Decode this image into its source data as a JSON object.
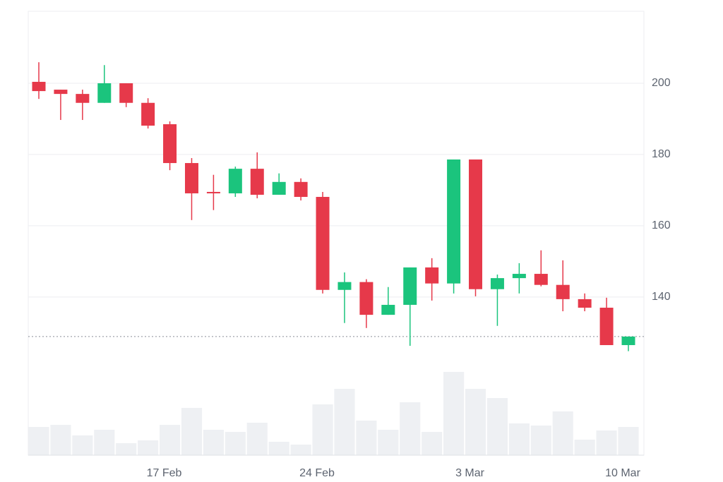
{
  "chart_data": {
    "type": "candlestick",
    "categories": [
      null,
      null,
      null,
      null,
      null,
      null,
      "17 Feb",
      null,
      null,
      null,
      null,
      null,
      null,
      "24 Feb",
      null,
      null,
      null,
      null,
      null,
      null,
      "3 Mar",
      null,
      null,
      null,
      null,
      null,
      null,
      "10 Mar"
    ],
    "open": [
      200.4,
      198.2,
      197.0,
      194.5,
      200.0,
      194.5,
      188.5,
      177.6,
      169.5,
      169.1,
      176.0,
      168.7,
      172.3,
      168.1,
      142.0,
      144.2,
      135.0,
      137.8,
      148.3,
      143.8,
      178.6,
      142.2,
      145.3,
      146.5,
      143.4,
      139.4,
      137.0,
      126.5
    ],
    "high": [
      205.9,
      198.2,
      198.2,
      205.1,
      200.0,
      195.8,
      189.3,
      179.0,
      174.3,
      176.6,
      180.6,
      174.7,
      173.3,
      169.5,
      146.9,
      145.0,
      142.8,
      148.3,
      150.9,
      178.6,
      178.6,
      146.3,
      149.5,
      153.1,
      150.3,
      141.0,
      139.8,
      128.9
    ],
    "low": [
      195.6,
      189.7,
      189.7,
      194.5,
      193.3,
      187.3,
      175.6,
      161.6,
      164.4,
      168.1,
      167.7,
      168.7,
      167.1,
      141.0,
      132.7,
      131.3,
      135.0,
      126.3,
      139.0,
      141.0,
      140.2,
      131.9,
      141.0,
      143.0,
      136.0,
      136.0,
      126.5,
      124.8
    ],
    "close": [
      197.8,
      197.0,
      194.5,
      200.0,
      194.5,
      188.1,
      177.6,
      169.1,
      169.1,
      176.0,
      168.7,
      172.3,
      168.1,
      142.0,
      144.2,
      135.0,
      137.8,
      148.3,
      143.8,
      178.6,
      142.2,
      145.3,
      146.5,
      143.4,
      139.4,
      137.0,
      126.5,
      128.9
    ],
    "volume": [
      40,
      43,
      28,
      36,
      17,
      21,
      43,
      67,
      36,
      33,
      46,
      19,
      15,
      72,
      94,
      49,
      36,
      75,
      33,
      118,
      94,
      81,
      45,
      42,
      62,
      22,
      35,
      40
    ],
    "volume_lim": [
      0,
      140
    ],
    "last_price": 128.9,
    "up_color": "#1bc47d",
    "down_color": "#e6394a",
    "volume_color": "#eef0f3",
    "ylim": [
      95.6,
      220.2
    ],
    "yticks": [
      140,
      160,
      180,
      200
    ],
    "grid": true
  }
}
